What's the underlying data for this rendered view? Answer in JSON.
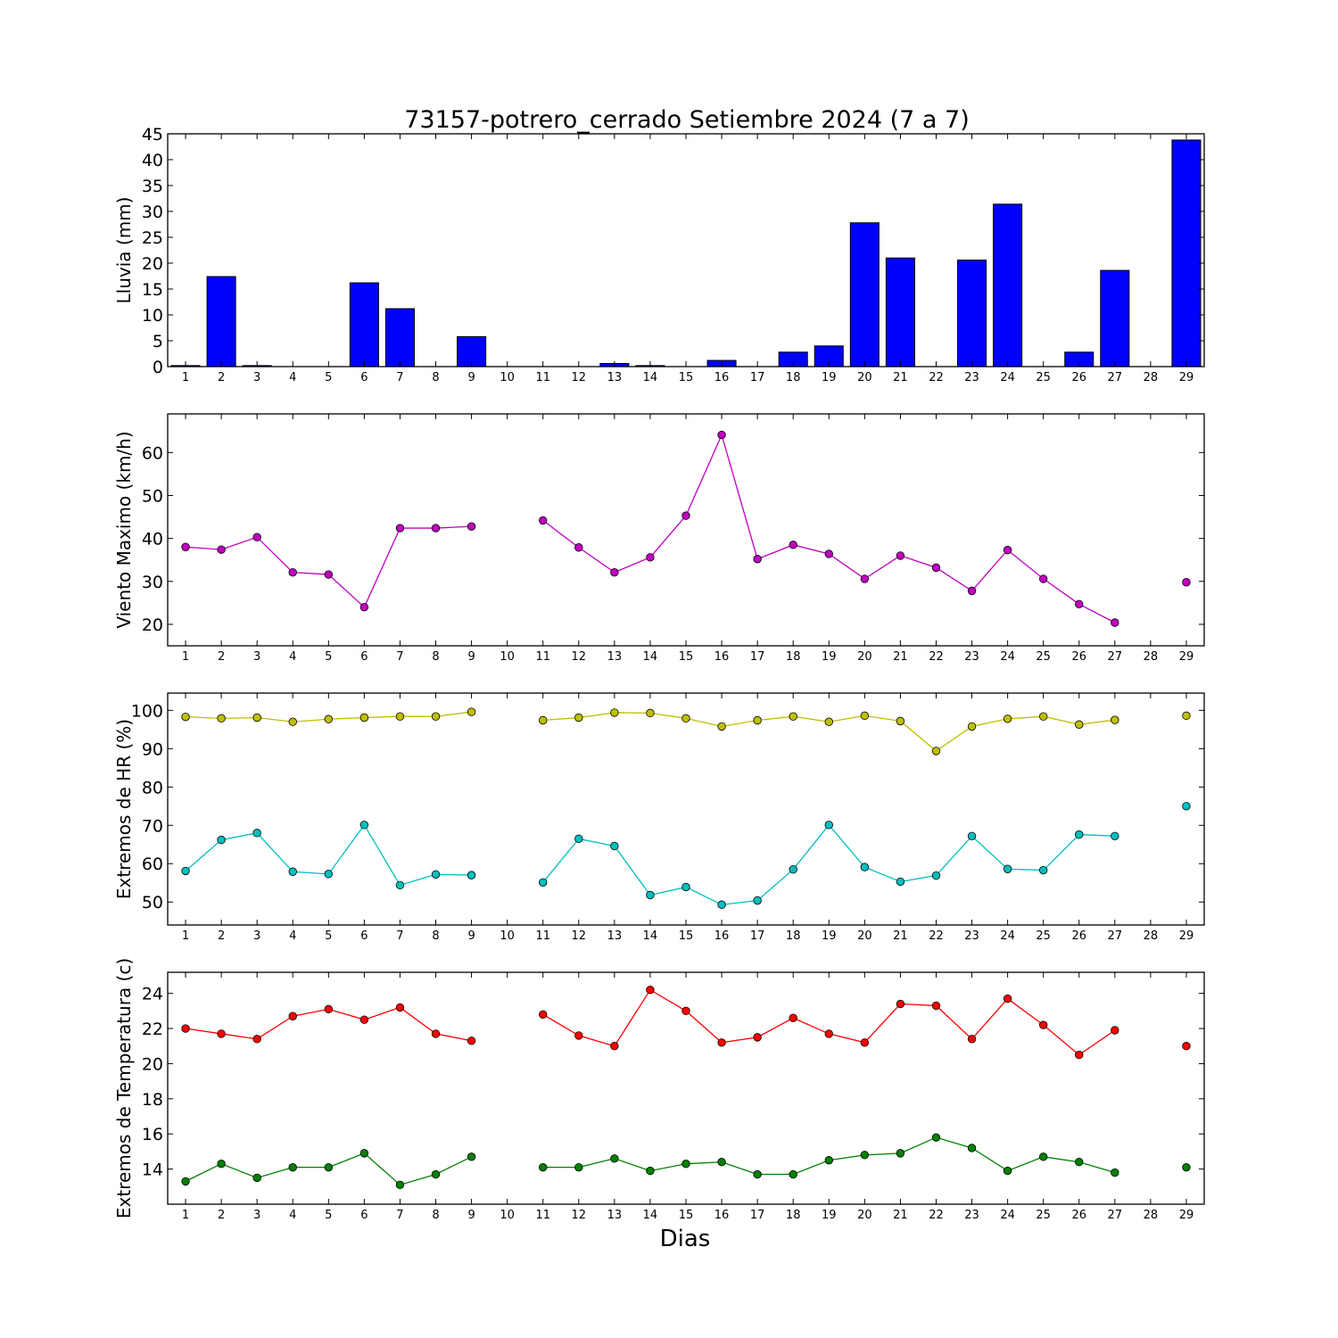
{
  "chart_data": [
    {
      "type": "bar",
      "title": "73157-potrero_cerrado Setiembre 2024  (7 a 7)",
      "ylabel": "Lluvia (mm)",
      "xlabel": "",
      "ylim": [
        0,
        45
      ],
      "yticks": [
        0,
        5,
        10,
        15,
        20,
        25,
        30,
        35,
        40,
        45
      ],
      "categories": [
        1,
        2,
        3,
        4,
        5,
        6,
        7,
        8,
        9,
        10,
        11,
        12,
        13,
        14,
        15,
        16,
        17,
        18,
        19,
        20,
        21,
        22,
        23,
        24,
        25,
        26,
        27,
        28,
        29
      ],
      "color": "#0000ff",
      "values": [
        0.2,
        17.4,
        0.2,
        0,
        0,
        16.2,
        11.2,
        null,
        5.8,
        0,
        0,
        0,
        0.6,
        0.2,
        0,
        1.2,
        0,
        2.8,
        4,
        27.8,
        21,
        null,
        20.6,
        31.4,
        0,
        2.8,
        18.6,
        null,
        43.8
      ]
    },
    {
      "type": "line",
      "ylabel": "Viento Maximo (km/h)",
      "xlabel": "",
      "ylim": [
        15,
        69
      ],
      "yticks": [
        20,
        30,
        40,
        50,
        60
      ],
      "categories": [
        1,
        2,
        3,
        4,
        5,
        6,
        7,
        8,
        9,
        10,
        11,
        12,
        13,
        14,
        15,
        16,
        17,
        18,
        19,
        20,
        21,
        22,
        23,
        24,
        25,
        26,
        27,
        28,
        29
      ],
      "series": [
        {
          "color": "#bf00bf",
          "values": [
            38,
            37.4,
            40.3,
            32.1,
            31.6,
            24,
            42.4,
            42.4,
            42.8,
            null,
            44.2,
            37.9,
            32.1,
            35.6,
            45.3,
            64.1,
            35.2,
            38.5,
            36.4,
            30.6,
            36,
            33.2,
            27.8,
            37.3,
            30.6,
            24.7,
            20.4,
            null,
            29.8
          ]
        }
      ]
    },
    {
      "type": "line",
      "ylabel": "Extremos de HR (%)",
      "xlabel": "",
      "ylim": [
        44,
        104.5
      ],
      "yticks": [
        50,
        60,
        70,
        80,
        90,
        100
      ],
      "categories": [
        1,
        2,
        3,
        4,
        5,
        6,
        7,
        8,
        9,
        10,
        11,
        12,
        13,
        14,
        15,
        16,
        17,
        18,
        19,
        20,
        21,
        22,
        23,
        24,
        25,
        26,
        27,
        28,
        29
      ],
      "series": [
        {
          "color": "#bfbf00",
          "values": [
            98.3,
            97.9,
            98.1,
            97,
            97.7,
            98.1,
            98.4,
            98.4,
            99.6,
            null,
            97.4,
            98.1,
            99.4,
            99.3,
            97.9,
            95.8,
            97.4,
            98.4,
            97,
            98.6,
            97.2,
            89.4,
            95.8,
            97.8,
            98.4,
            96.3,
            97.5,
            null,
            98.6
          ]
        },
        {
          "color": "#00bfbf",
          "values": [
            58.1,
            66.2,
            68,
            57.9,
            57.3,
            70.1,
            54.4,
            57.2,
            57,
            null,
            55.1,
            66.5,
            64.6,
            51.8,
            53.9,
            49.3,
            50.4,
            58.5,
            70.1,
            59.1,
            55.3,
            56.9,
            67.2,
            58.6,
            58.3,
            67.6,
            67.2,
            null,
            75
          ]
        }
      ]
    },
    {
      "type": "line",
      "ylabel": "Extremos de Temperatura (c)",
      "xlabel": "Dias",
      "ylim": [
        12,
        25.2
      ],
      "yticks": [
        14,
        16,
        18,
        20,
        22,
        24
      ],
      "categories": [
        1,
        2,
        3,
        4,
        5,
        6,
        7,
        8,
        9,
        10,
        11,
        12,
        13,
        14,
        15,
        16,
        17,
        18,
        19,
        20,
        21,
        22,
        23,
        24,
        25,
        26,
        27,
        28,
        29
      ],
      "series": [
        {
          "color": "#ff0000",
          "values": [
            22,
            21.7,
            21.4,
            22.7,
            23.1,
            22.5,
            23.2,
            21.7,
            21.3,
            null,
            22.8,
            21.6,
            21,
            24.2,
            23,
            21.2,
            21.5,
            22.6,
            21.7,
            21.2,
            23.4,
            23.3,
            21.4,
            23.7,
            22.2,
            20.5,
            21.9,
            null,
            21
          ]
        },
        {
          "color": "#008000",
          "values": [
            13.3,
            14.3,
            13.5,
            14.1,
            14.1,
            14.9,
            13.1,
            13.7,
            14.7,
            null,
            14.1,
            14.1,
            14.6,
            13.9,
            14.3,
            14.4,
            13.7,
            13.7,
            14.5,
            14.8,
            14.9,
            15.8,
            15.2,
            13.9,
            14.7,
            14.4,
            13.8,
            null,
            14.1
          ]
        }
      ]
    }
  ]
}
